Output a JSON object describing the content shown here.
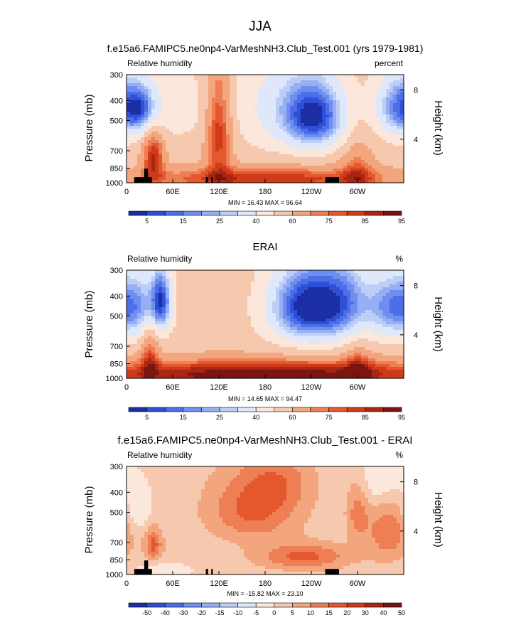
{
  "figure": {
    "title": "JJA",
    "subtitle": "f.e15a6.FAMIPC5.ne0np4-VarMeshNH3.Club_Test.001 (yrs 1979-1981)"
  },
  "colors": {
    "abs": [
      "#1b2ea3",
      "#2e4fd6",
      "#4c6fe8",
      "#6f8ff0",
      "#95aef4",
      "#bccdf7",
      "#dfe8fa",
      "#fbe7dc",
      "#f6c9ae",
      "#f3a57e",
      "#ee7f55",
      "#e5582e",
      "#cf3a1a",
      "#a82612",
      "#7a1510"
    ],
    "diff": [
      "#1b2ea3",
      "#2e4fd6",
      "#4c6fe8",
      "#6f8ff0",
      "#95aef4",
      "#bccdf7",
      "#dfe8fa",
      "#fbe7dc",
      "#f6c9ae",
      "#f3a57e",
      "#ee7f55",
      "#e5582e",
      "#cf3a1a",
      "#a82612",
      "#7a1510"
    ]
  },
  "chart_data": [
    {
      "type": "heatmap",
      "panel_title": "",
      "left_label": "Relative humidity",
      "right_label": "percent",
      "ylabel": "Pressure (mb)",
      "y2label": "Height (km)",
      "xticks": [
        "0",
        "60E",
        "120E",
        "180",
        "120W",
        "60W"
      ],
      "xtick_lon": [
        0,
        60,
        120,
        180,
        240,
        300
      ],
      "xlim": [
        0,
        360
      ],
      "yticks": [
        "300",
        "400",
        "500",
        "700",
        "850",
        "1000"
      ],
      "ytick_p": [
        300,
        400,
        500,
        700,
        850,
        1000
      ],
      "ylim": [
        1000,
        300
      ],
      "y2ticks": [
        "8",
        "4"
      ],
      "y2tick_p": [
        356,
        616
      ],
      "minmax": "MIN =  16.43   MAX =  96.64",
      "cbar_labels": [
        "5",
        "15",
        "25",
        "40",
        "60",
        "75",
        "85",
        "95"
      ],
      "cbar_label_pos": [
        1,
        3,
        5,
        7,
        9,
        11,
        13,
        15
      ],
      "palette": "abs",
      "levels": [
        5,
        10,
        15,
        20,
        25,
        30,
        40,
        50,
        60,
        70,
        75,
        80,
        85,
        90,
        95
      ],
      "terrain": [
        [
          10,
          23,
          940
        ],
        [
          23,
          28,
          855
        ],
        [
          28,
          33,
          940
        ],
        [
          47,
          47,
          1000
        ],
        [
          103,
          106,
          940
        ],
        [
          110,
          112,
          940
        ],
        [
          258,
          270,
          940
        ],
        [
          270,
          276,
          940
        ]
      ],
      "features": [
        {
          "lon": 20,
          "p": 440,
          "sx": 14,
          "sp": 80,
          "a": -25
        },
        {
          "lon": 245,
          "p": 480,
          "sx": 28,
          "sp": 130,
          "a": -45
        },
        {
          "lon": 355,
          "p": 430,
          "sx": 22,
          "sp": 110,
          "a": -40
        },
        {
          "lon": 200,
          "p": 420,
          "sx": 45,
          "sp": 170,
          "a": -18
        },
        {
          "lon": 60,
          "p": 420,
          "sx": 30,
          "sp": 120,
          "a": -12
        },
        {
          "lon": 120,
          "p": 560,
          "sx": 12,
          "sp": 260,
          "a": 30
        },
        {
          "lon": 35,
          "p": 740,
          "sx": 10,
          "sp": 160,
          "a": 30
        },
        {
          "lon": 180,
          "p": 960,
          "sx": 120,
          "sp": 90,
          "a": 30
        },
        {
          "lon": 300,
          "p": 900,
          "sx": 15,
          "sp": 220,
          "a": 18
        }
      ]
    },
    {
      "type": "heatmap",
      "panel_title": "ERAI",
      "left_label": "Relative humidity",
      "right_label": "%",
      "ylabel": "Pressure (mb)",
      "y2label": "Height (km)",
      "xticks": [
        "0",
        "60E",
        "120E",
        "180",
        "120W",
        "60W"
      ],
      "xtick_lon": [
        0,
        60,
        120,
        180,
        240,
        300
      ],
      "xlim": [
        0,
        360
      ],
      "yticks": [
        "300",
        "400",
        "500",
        "700",
        "850",
        "1000"
      ],
      "ytick_p": [
        300,
        400,
        500,
        700,
        850,
        1000
      ],
      "ylim": [
        1000,
        300
      ],
      "y2ticks": [
        "8",
        "4"
      ],
      "y2tick_p": [
        356,
        616
      ],
      "minmax": "MIN =  14.65   MAX =  94.47",
      "cbar_labels": [
        "5",
        "15",
        "25",
        "40",
        "60",
        "75",
        "85",
        "95"
      ],
      "cbar_label_pos": [
        1,
        3,
        5,
        7,
        9,
        11,
        13,
        15
      ],
      "palette": "abs",
      "levels": [
        5,
        10,
        15,
        20,
        25,
        30,
        40,
        50,
        60,
        70,
        75,
        80,
        85,
        90,
        95
      ],
      "terrain": [],
      "features": [
        {
          "lon": 45,
          "p": 420,
          "sx": 10,
          "sp": 110,
          "a": -45
        },
        {
          "lon": 235,
          "p": 450,
          "sx": 35,
          "sp": 140,
          "a": -55
        },
        {
          "lon": 350,
          "p": 450,
          "sx": 25,
          "sp": 120,
          "a": -40
        },
        {
          "lon": 20,
          "p": 450,
          "sx": 15,
          "sp": 120,
          "a": -15
        },
        {
          "lon": 285,
          "p": 420,
          "sx": 25,
          "sp": 150,
          "a": -25
        },
        {
          "lon": 180,
          "p": 960,
          "sx": 200,
          "sp": 110,
          "a": 40
        },
        {
          "lon": 30,
          "p": 750,
          "sx": 8,
          "sp": 180,
          "a": 20
        },
        {
          "lon": 300,
          "p": 880,
          "sx": 12,
          "sp": 160,
          "a": 15
        }
      ]
    },
    {
      "type": "heatmap",
      "panel_title": "f.e15a6.FAMIPC5.ne0np4-VarMeshNH3.Club_Test.001 - ERAI",
      "left_label": "Relative humidity",
      "right_label": "%",
      "ylabel": "Pressure (mb)",
      "y2label": "Height (km)",
      "xticks": [
        "0",
        "60E",
        "120E",
        "180",
        "120W",
        "60W"
      ],
      "xtick_lon": [
        0,
        60,
        120,
        180,
        240,
        300
      ],
      "xlim": [
        0,
        360
      ],
      "yticks": [
        "300",
        "400",
        "500",
        "700",
        "850",
        "1000"
      ],
      "ytick_p": [
        300,
        400,
        500,
        700,
        850,
        1000
      ],
      "ylim": [
        1000,
        300
      ],
      "y2ticks": [
        "8",
        "4"
      ],
      "y2tick_p": [
        356,
        616
      ],
      "minmax": "MIN = -15.82   MAX =  23.10",
      "cbar_labels": [
        "-50",
        "-40",
        "-30",
        "-20",
        "-15",
        "-10",
        "-5",
        "0",
        "5",
        "10",
        "15",
        "20",
        "30",
        "40",
        "50"
      ],
      "cbar_label_pos": [
        1,
        2,
        3,
        4,
        5,
        6,
        7,
        8,
        9,
        10,
        11,
        12,
        13,
        14,
        15
      ],
      "palette": "diff",
      "levels": [
        -50,
        -40,
        -30,
        -20,
        -15,
        -10,
        -5,
        0,
        5,
        10,
        15,
        20,
        30,
        40,
        50
      ],
      "terrain": [
        [
          10,
          23,
          940
        ],
        [
          23,
          28,
          855
        ],
        [
          28,
          33,
          940
        ],
        [
          103,
          106,
          940
        ],
        [
          110,
          112,
          940
        ],
        [
          258,
          276,
          940
        ]
      ],
      "features": [
        {
          "lon": 165,
          "p": 480,
          "sx": 40,
          "sp": 130,
          "a": 15
        },
        {
          "lon": 230,
          "p": 820,
          "sx": 40,
          "sp": 80,
          "a": 15
        },
        {
          "lon": 35,
          "p": 720,
          "sx": 8,
          "sp": 90,
          "a": 15
        },
        {
          "lon": 15,
          "p": 480,
          "sx": 12,
          "sp": 100,
          "a": -8
        },
        {
          "lon": 340,
          "p": 620,
          "sx": 20,
          "sp": 150,
          "a": 12
        },
        {
          "lon": 300,
          "p": 500,
          "sx": 10,
          "sp": 120,
          "a": 10
        },
        {
          "lon": 200,
          "p": 350,
          "sx": 30,
          "sp": 80,
          "a": 8
        },
        {
          "lon": 330,
          "p": 350,
          "sx": 20,
          "sp": 80,
          "a": -8
        },
        {
          "lon": 45,
          "p": 950,
          "sx": 30,
          "sp": 60,
          "a": -5
        }
      ]
    }
  ]
}
